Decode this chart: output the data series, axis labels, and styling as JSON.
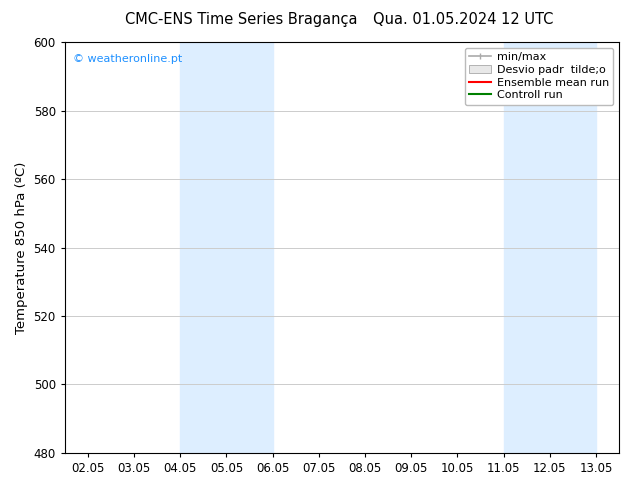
{
  "title_left": "CMC-ENS Time Series Bragança",
  "title_right": "Qua. 01.05.2024 12 UTC",
  "ylabel": "Temperature 850 hPa (ºC)",
  "ylim": [
    480,
    600
  ],
  "yticks": [
    480,
    500,
    520,
    540,
    560,
    580,
    600
  ],
  "xtick_labels": [
    "02.05",
    "03.05",
    "04.05",
    "05.05",
    "06.05",
    "07.05",
    "08.05",
    "09.05",
    "10.05",
    "11.05",
    "12.05",
    "13.05"
  ],
  "xtick_positions": [
    2,
    3,
    4,
    5,
    6,
    7,
    8,
    9,
    10,
    11,
    12,
    13
  ],
  "xlim_min": 1.5,
  "xlim_max": 13.5,
  "background_color": "#ffffff",
  "plot_bg_color": "#ffffff",
  "shaded_bands": [
    {
      "x_start": 4,
      "x_end": 6,
      "color": "#ddeeff"
    },
    {
      "x_start": 11,
      "x_end": 13,
      "color": "#ddeeff"
    }
  ],
  "watermark_text": "© weatheronline.pt",
  "watermark_color": "#1e90ff",
  "grid_color": "#cccccc",
  "tick_label_fontsize": 8.5,
  "axis_label_fontsize": 9.5,
  "title_fontsize": 10.5,
  "legend_label_fontsize": 8,
  "minmax_color": "#aaaaaa",
  "desvio_color": "#cccccc",
  "ensemble_color": "#ff0000",
  "controll_color": "#008000"
}
